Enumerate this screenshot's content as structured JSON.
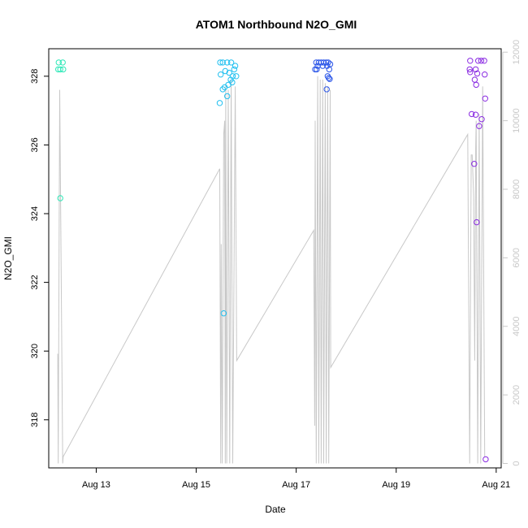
{
  "chart_data": {
    "type": "scatter",
    "title": "ATOM1 Northbound N2O_GMI",
    "xlabel": "Date",
    "ylabel": "N2O_GMI",
    "x_ticks": [
      "Aug 13",
      "Aug 15",
      "Aug 17",
      "Aug 19",
      "Aug 21"
    ],
    "x_tick_days": [
      13,
      15,
      17,
      19,
      21
    ],
    "xlim_days": [
      12.05,
      21.1
    ],
    "y_ticks": [
      "318",
      "320",
      "322",
      "324",
      "326",
      "328"
    ],
    "y_tick_values": [
      318,
      320,
      322,
      324,
      326,
      328
    ],
    "ylim": [
      316.6,
      328.8
    ],
    "y2_ticks": [
      "0",
      "2000",
      "4000",
      "6000",
      "8000",
      "10000",
      "12000"
    ],
    "y2_tick_values": [
      0,
      2000,
      4000,
      6000,
      8000,
      10000,
      12000
    ],
    "y2lim": [
      -130,
      12100
    ],
    "colors": {
      "axis": "#000000",
      "secondary": "#c8c8c8",
      "line": "#c8c8c8"
    },
    "points": [
      {
        "day": 12.25,
        "n2o": 328.4,
        "color": "#2ee8b8"
      },
      {
        "day": 12.33,
        "n2o": 328.4,
        "color": "#2ee8b8"
      },
      {
        "day": 12.24,
        "n2o": 328.2,
        "color": "#2ee8b8"
      },
      {
        "day": 12.28,
        "n2o": 328.2,
        "color": "#2ee8b8"
      },
      {
        "day": 12.34,
        "n2o": 328.2,
        "color": "#2ee8b8"
      },
      {
        "day": 12.28,
        "n2o": 324.45,
        "color": "#2ee8b8"
      },
      {
        "day": 15.48,
        "n2o": 328.4,
        "color": "#22c0f0"
      },
      {
        "day": 15.53,
        "n2o": 328.4,
        "color": "#22c0f0"
      },
      {
        "day": 15.62,
        "n2o": 328.4,
        "color": "#22c0f0"
      },
      {
        "day": 15.7,
        "n2o": 328.4,
        "color": "#22c0f0"
      },
      {
        "day": 15.78,
        "n2o": 328.3,
        "color": "#22c0f0"
      },
      {
        "day": 15.76,
        "n2o": 328.2,
        "color": "#22c0f0"
      },
      {
        "day": 15.58,
        "n2o": 328.15,
        "color": "#22c0f0"
      },
      {
        "day": 15.66,
        "n2o": 328.1,
        "color": "#22c0f0"
      },
      {
        "day": 15.49,
        "n2o": 328.05,
        "color": "#22c0f0"
      },
      {
        "day": 15.73,
        "n2o": 328.0,
        "color": "#22c0f0"
      },
      {
        "day": 15.8,
        "n2o": 328.0,
        "color": "#22c0f0"
      },
      {
        "day": 15.69,
        "n2o": 327.9,
        "color": "#22c0f0"
      },
      {
        "day": 15.72,
        "n2o": 327.82,
        "color": "#22c0f0"
      },
      {
        "day": 15.64,
        "n2o": 327.75,
        "color": "#22c0f0"
      },
      {
        "day": 15.57,
        "n2o": 327.68,
        "color": "#22c0f0"
      },
      {
        "day": 15.53,
        "n2o": 327.62,
        "color": "#22c0f0"
      },
      {
        "day": 15.62,
        "n2o": 327.42,
        "color": "#22c0f0"
      },
      {
        "day": 15.47,
        "n2o": 327.22,
        "color": "#22c0f0"
      },
      {
        "day": 15.55,
        "n2o": 321.1,
        "color": "#22c0f0"
      },
      {
        "day": 17.4,
        "n2o": 328.4,
        "color": "#2a55e8"
      },
      {
        "day": 17.45,
        "n2o": 328.4,
        "color": "#2a55e8"
      },
      {
        "day": 17.5,
        "n2o": 328.4,
        "color": "#2a55e8"
      },
      {
        "day": 17.55,
        "n2o": 328.4,
        "color": "#2a55e8"
      },
      {
        "day": 17.6,
        "n2o": 328.4,
        "color": "#2a55e8"
      },
      {
        "day": 17.64,
        "n2o": 328.4,
        "color": "#2a55e8"
      },
      {
        "day": 17.68,
        "n2o": 328.35,
        "color": "#2a55e8"
      },
      {
        "day": 17.43,
        "n2o": 328.3,
        "color": "#2a55e8"
      },
      {
        "day": 17.53,
        "n2o": 328.3,
        "color": "#2a55e8"
      },
      {
        "day": 17.62,
        "n2o": 328.3,
        "color": "#2a55e8"
      },
      {
        "day": 17.38,
        "n2o": 328.2,
        "color": "#2a55e8"
      },
      {
        "day": 17.41,
        "n2o": 328.2,
        "color": "#2a55e8"
      },
      {
        "day": 17.66,
        "n2o": 328.2,
        "color": "#2a55e8"
      },
      {
        "day": 17.63,
        "n2o": 328.0,
        "color": "#2a55e8"
      },
      {
        "day": 17.65,
        "n2o": 327.95,
        "color": "#2a55e8"
      },
      {
        "day": 17.67,
        "n2o": 327.92,
        "color": "#2a55e8"
      },
      {
        "day": 17.61,
        "n2o": 327.62,
        "color": "#2a55e8"
      },
      {
        "day": 20.48,
        "n2o": 328.45,
        "color": "#8a2be2"
      },
      {
        "day": 20.64,
        "n2o": 328.45,
        "color": "#8a2be2"
      },
      {
        "day": 20.7,
        "n2o": 328.45,
        "color": "#8a2be2"
      },
      {
        "day": 20.76,
        "n2o": 328.45,
        "color": "#8a2be2"
      },
      {
        "day": 20.47,
        "n2o": 328.2,
        "color": "#8a2be2"
      },
      {
        "day": 20.59,
        "n2o": 328.2,
        "color": "#8a2be2"
      },
      {
        "day": 20.48,
        "n2o": 328.12,
        "color": "#8a2be2"
      },
      {
        "day": 20.62,
        "n2o": 328.08,
        "color": "#8a2be2"
      },
      {
        "day": 20.77,
        "n2o": 328.05,
        "color": "#8a2be2"
      },
      {
        "day": 20.57,
        "n2o": 327.9,
        "color": "#8a2be2"
      },
      {
        "day": 20.6,
        "n2o": 327.75,
        "color": "#8a2be2"
      },
      {
        "day": 20.78,
        "n2o": 327.35,
        "color": "#8a2be2"
      },
      {
        "day": 20.51,
        "n2o": 326.9,
        "color": "#8a2be2"
      },
      {
        "day": 20.59,
        "n2o": 326.88,
        "color": "#8a2be2"
      },
      {
        "day": 20.71,
        "n2o": 326.75,
        "color": "#8a2be2"
      },
      {
        "day": 20.66,
        "n2o": 326.55,
        "color": "#8a2be2"
      },
      {
        "day": 20.56,
        "n2o": 325.45,
        "color": "#8a2be2"
      },
      {
        "day": 20.61,
        "n2o": 323.75,
        "color": "#8a2be2"
      },
      {
        "day": 20.79,
        "n2o": 316.85,
        "color": "#8a2be2"
      }
    ],
    "secondary_line": [
      [
        12.23,
        3200
      ],
      [
        12.24,
        0
      ],
      [
        12.27,
        10900
      ],
      [
        12.33,
        0
      ],
      [
        12.34,
        200
      ],
      [
        15.47,
        8600
      ],
      [
        15.49,
        0
      ],
      [
        15.5,
        6400
      ],
      [
        15.52,
        0
      ],
      [
        15.55,
        9600
      ],
      [
        15.57,
        10000
      ],
      [
        15.58,
        0
      ],
      [
        15.59,
        11000
      ],
      [
        15.61,
        0
      ],
      [
        15.64,
        10900
      ],
      [
        15.67,
        0
      ],
      [
        15.7,
        11200
      ],
      [
        15.73,
        0
      ],
      [
        15.78,
        11000
      ],
      [
        15.81,
        3000
      ],
      [
        17.35,
        6800
      ],
      [
        17.37,
        1100
      ],
      [
        17.38,
        10000
      ],
      [
        17.4,
        0
      ],
      [
        17.43,
        11300
      ],
      [
        17.45,
        0
      ],
      [
        17.48,
        11200
      ],
      [
        17.5,
        0
      ],
      [
        17.53,
        11200
      ],
      [
        17.55,
        0
      ],
      [
        17.58,
        11100
      ],
      [
        17.6,
        0
      ],
      [
        17.63,
        11000
      ],
      [
        17.65,
        0
      ],
      [
        17.68,
        10900
      ],
      [
        17.69,
        2800
      ],
      [
        20.43,
        9600
      ],
      [
        20.47,
        0
      ],
      [
        20.5,
        9000
      ],
      [
        20.52,
        9000
      ],
      [
        20.55,
        7800
      ],
      [
        20.57,
        3000
      ],
      [
        20.59,
        9200
      ],
      [
        20.6,
        10000
      ],
      [
        20.63,
        0
      ],
      [
        20.66,
        10200
      ],
      [
        20.69,
        0
      ],
      [
        20.73,
        11000
      ],
      [
        20.77,
        200
      ]
    ]
  }
}
